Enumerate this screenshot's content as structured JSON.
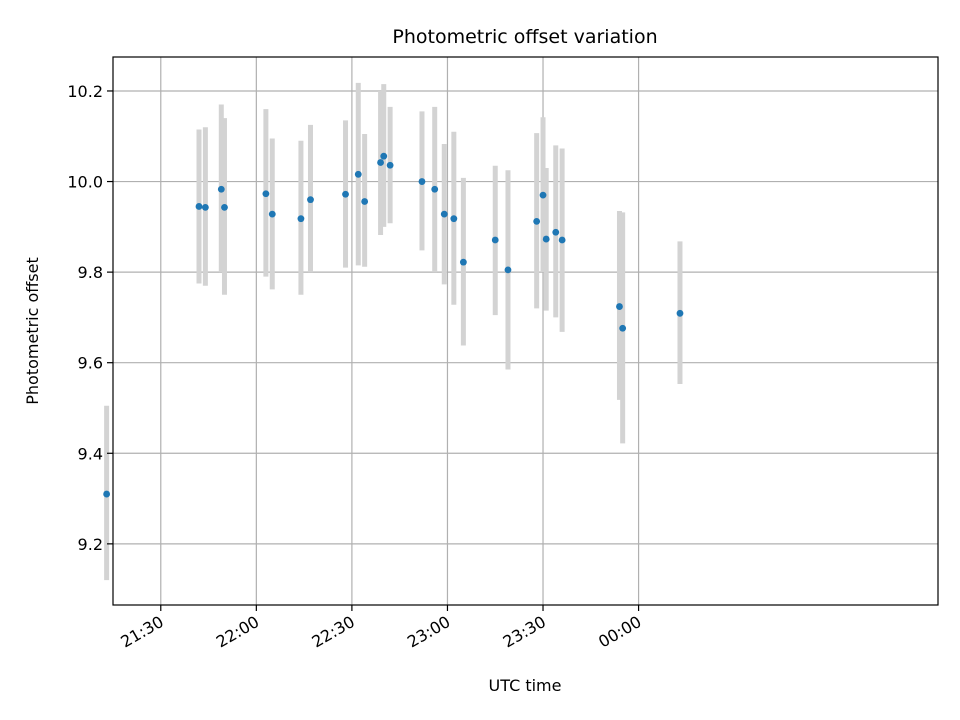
{
  "chart_data": {
    "type": "scatter",
    "title": "Photometric offset variation",
    "xlabel": "UTC time",
    "ylabel": "Photometric offset",
    "x_axis_kind": "time",
    "xlim": [
      "21:15",
      "01:34"
    ],
    "ylim": [
      9.065,
      10.275
    ],
    "grid": true,
    "marker_color": "#1f77b4",
    "errorbar_color": "#d3d3d3",
    "x_ticks": [
      {
        "value": "21:30",
        "label": "21:30"
      },
      {
        "value": "22:00",
        "label": "22:00"
      },
      {
        "value": "22:30",
        "label": "22:30"
      },
      {
        "value": "23:00",
        "label": "23:00"
      },
      {
        "value": "23:30",
        "label": "23:30"
      },
      {
        "value": "00:00",
        "label": "00:00"
      }
    ],
    "y_ticks": [
      {
        "value": 9.2,
        "label": "9.2"
      },
      {
        "value": 9.4,
        "label": "9.4"
      },
      {
        "value": 9.6,
        "label": "9.6"
      },
      {
        "value": 9.8,
        "label": "9.8"
      },
      {
        "value": 10.0,
        "label": "10.0"
      },
      {
        "value": 10.2,
        "label": "10.2"
      }
    ],
    "points": [
      {
        "x": "21:13",
        "y": 9.31,
        "lo": 9.12,
        "hi": 9.505
      },
      {
        "x": "21:42",
        "y": 9.945,
        "lo": 9.775,
        "hi": 10.115
      },
      {
        "x": "21:44",
        "y": 9.943,
        "lo": 9.77,
        "hi": 10.12
      },
      {
        "x": "21:49",
        "y": 9.983,
        "lo": 9.8,
        "hi": 10.17
      },
      {
        "x": "21:50",
        "y": 9.943,
        "lo": 9.75,
        "hi": 10.14
      },
      {
        "x": "22:03",
        "y": 9.973,
        "lo": 9.79,
        "hi": 10.16
      },
      {
        "x": "22:05",
        "y": 9.928,
        "lo": 9.762,
        "hi": 10.095
      },
      {
        "x": "22:14",
        "y": 9.918,
        "lo": 9.75,
        "hi": 10.09
      },
      {
        "x": "22:17",
        "y": 9.96,
        "lo": 9.8,
        "hi": 10.125
      },
      {
        "x": "22:28",
        "y": 9.972,
        "lo": 9.81,
        "hi": 10.135
      },
      {
        "x": "22:32",
        "y": 10.016,
        "lo": 9.815,
        "hi": 10.218
      },
      {
        "x": "22:34",
        "y": 9.956,
        "lo": 9.812,
        "hi": 10.105
      },
      {
        "x": "22:39",
        "y": 10.042,
        "lo": 9.882,
        "hi": 10.2
      },
      {
        "x": "22:40",
        "y": 10.056,
        "lo": 9.9,
        "hi": 10.215
      },
      {
        "x": "22:42",
        "y": 10.036,
        "lo": 9.908,
        "hi": 10.165
      },
      {
        "x": "22:52",
        "y": 10.0,
        "lo": 9.848,
        "hi": 10.155
      },
      {
        "x": "22:56",
        "y": 9.983,
        "lo": 9.8,
        "hi": 10.165
      },
      {
        "x": "22:59",
        "y": 9.928,
        "lo": 9.773,
        "hi": 10.083
      },
      {
        "x": "23:02",
        "y": 9.918,
        "lo": 9.728,
        "hi": 10.11
      },
      {
        "x": "23:05",
        "y": 9.822,
        "lo": 9.638,
        "hi": 10.008
      },
      {
        "x": "23:15",
        "y": 9.871,
        "lo": 9.705,
        "hi": 10.035
      },
      {
        "x": "23:19",
        "y": 9.805,
        "lo": 9.585,
        "hi": 10.025
      },
      {
        "x": "23:28",
        "y": 9.912,
        "lo": 9.72,
        "hi": 10.107
      },
      {
        "x": "23:30",
        "y": 9.97,
        "lo": 9.8,
        "hi": 10.142
      },
      {
        "x": "23:31",
        "y": 9.873,
        "lo": 9.715,
        "hi": 10.03
      },
      {
        "x": "23:34",
        "y": 9.888,
        "lo": 9.7,
        "hi": 10.08
      },
      {
        "x": "23:36",
        "y": 9.871,
        "lo": 9.668,
        "hi": 10.073
      },
      {
        "x": "23:54",
        "y": 9.724,
        "lo": 9.518,
        "hi": 9.935
      },
      {
        "x": "23:55",
        "y": 9.676,
        "lo": 9.422,
        "hi": 9.932
      },
      {
        "x": "00:13",
        "y": 9.709,
        "lo": 9.553,
        "hi": 9.868
      }
    ]
  }
}
